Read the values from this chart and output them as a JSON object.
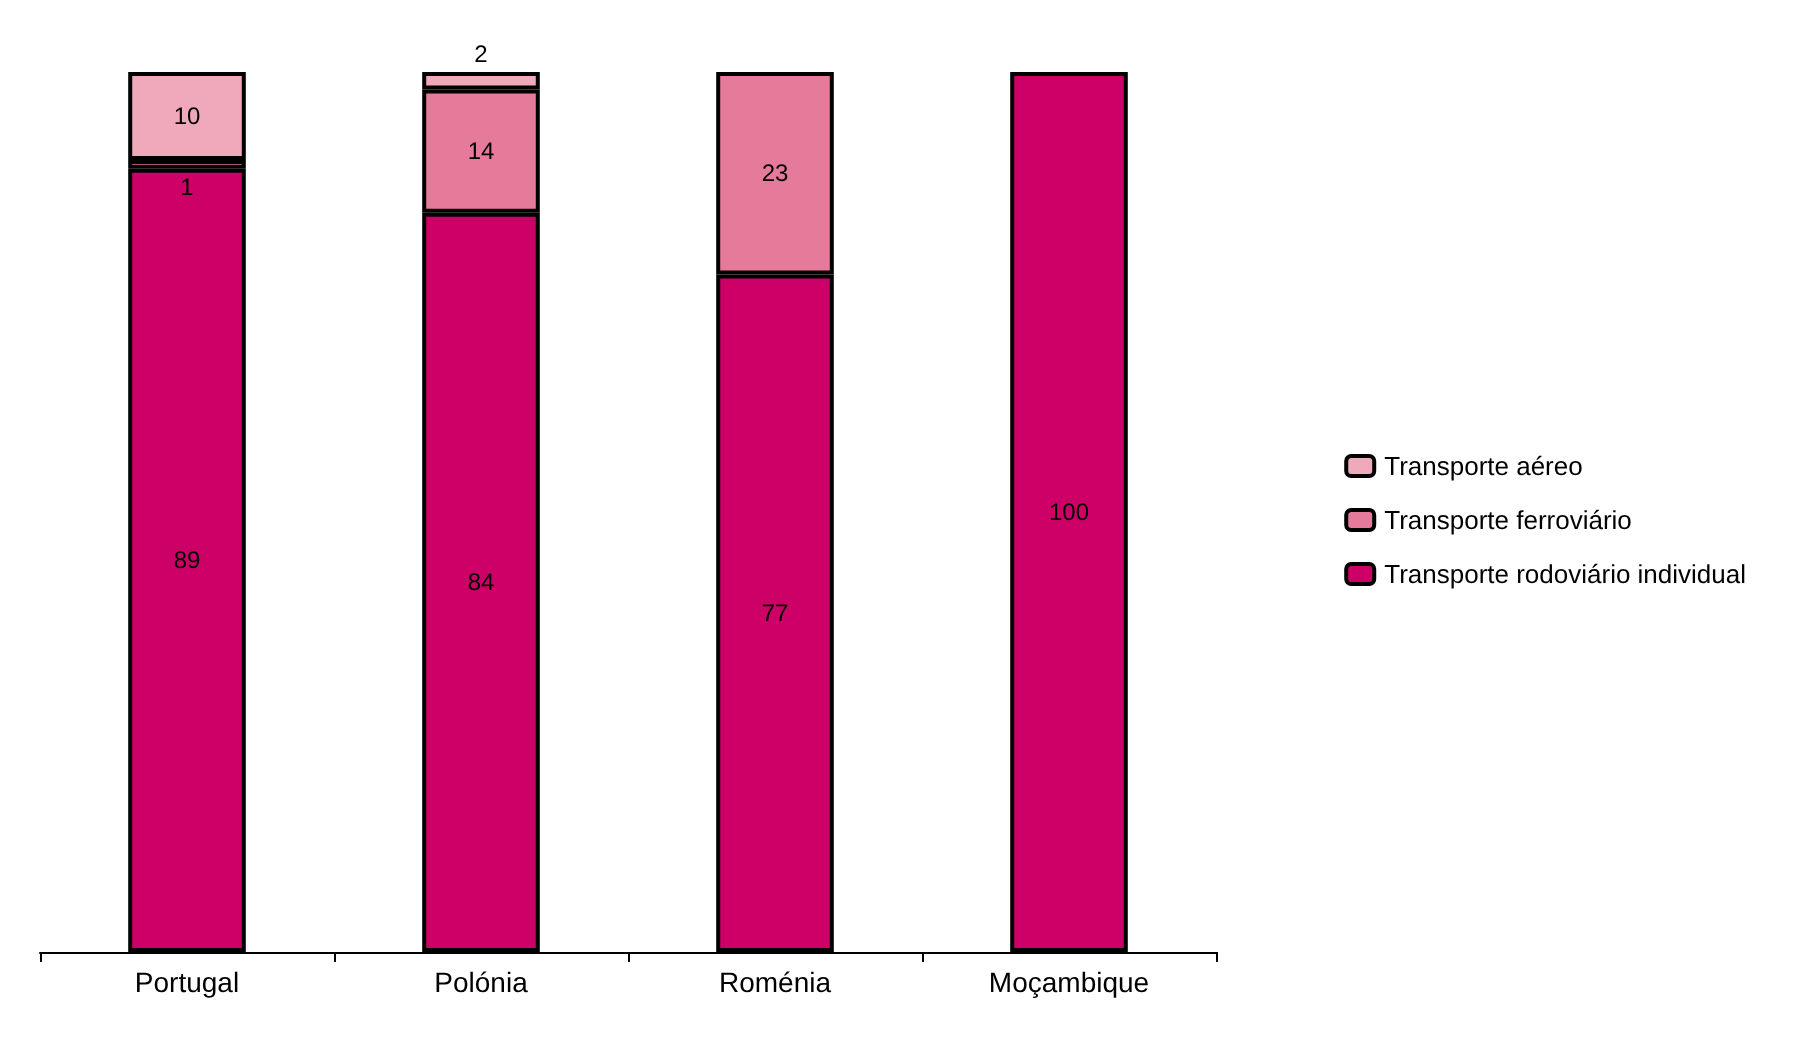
{
  "chart_data": {
    "type": "bar",
    "stacked": true,
    "data_labels": true,
    "legend": "right",
    "categories": [
      "Portugal",
      "Polónia",
      "Roménia",
      "Moçambique"
    ],
    "series": [
      {
        "name": "Transporte rodoviário individual",
        "color": "#cc0066",
        "values": [
          89,
          84,
          77,
          100
        ]
      },
      {
        "name": "Transporte ferroviário",
        "color": "#e67a9a",
        "values": [
          1,
          14,
          23,
          null
        ]
      },
      {
        "name": "Transporte aéreo",
        "color": "#f0a8bb",
        "values": [
          10,
          2,
          null,
          null
        ]
      }
    ]
  }
}
